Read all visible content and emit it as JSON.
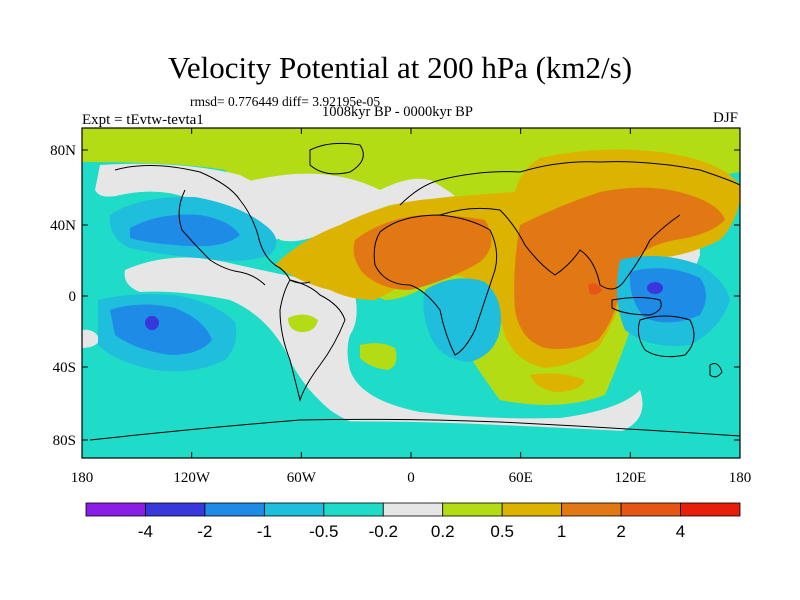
{
  "title": "Velocity Potential at 200 hPa (km2/s)",
  "stats": "rmsd= 0.776449 diff= 3.92195e-05",
  "period": "1008kyr BP - 0000kyr BP",
  "experiment": "Expt = tEvtw-tevta1",
  "season": "DJF",
  "lat_ticks": [
    "80N",
    "40N",
    "0",
    "40S",
    "80S"
  ],
  "lon_ticks": [
    "180",
    "120W",
    "60W",
    "0",
    "60E",
    "120E",
    "180"
  ],
  "colorbar": {
    "labels": [
      "-4",
      "-2",
      "-1",
      "-0.5",
      "-0.2",
      "0.2",
      "0.5",
      "1",
      "2",
      "4"
    ],
    "colors": [
      "#8a1ee6",
      "#3737dc",
      "#1e8ce6",
      "#1ebedc",
      "#1edcc8",
      "#e6e6e6",
      "#b4dc14",
      "#dcb400",
      "#e17814",
      "#e65514",
      "#e61e0a"
    ]
  }
}
